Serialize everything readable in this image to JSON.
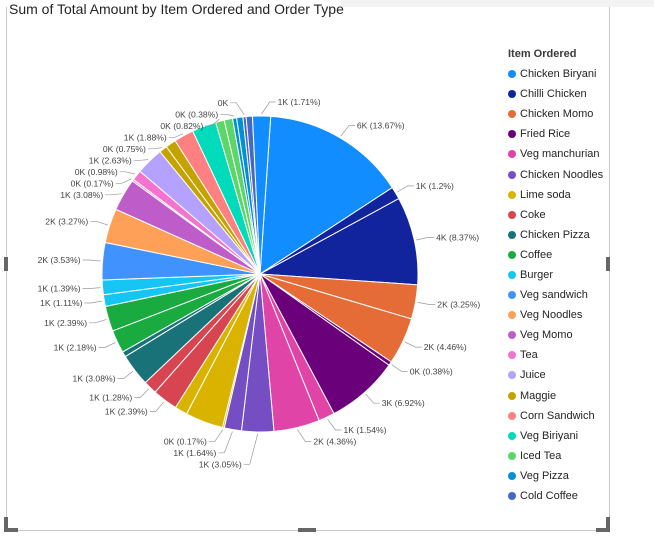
{
  "chart_data": {
    "type": "pie",
    "title": "Sum of Total Amount by Item Ordered and Order Type",
    "legend_title": "Item Ordered",
    "legend_position": "right",
    "legend": [
      {
        "name": "Chicken Biryani",
        "color": "#118DFF"
      },
      {
        "name": "Chilli Chicken",
        "color": "#12239E"
      },
      {
        "name": "Chicken Momo",
        "color": "#E66C37"
      },
      {
        "name": "Fried Rice",
        "color": "#6B007B"
      },
      {
        "name": "Veg manchurian",
        "color": "#E044A7"
      },
      {
        "name": "Chicken Noodles",
        "color": "#744EC2"
      },
      {
        "name": "Lime soda",
        "color": "#D9B300"
      },
      {
        "name": "Coke",
        "color": "#D64550"
      },
      {
        "name": "Chicken Pizza",
        "color": "#197278"
      },
      {
        "name": "Coffee",
        "color": "#1AAB40"
      },
      {
        "name": "Burger",
        "color": "#15C6F4"
      },
      {
        "name": "Veg sandwich",
        "color": "#4092FF"
      },
      {
        "name": "Veg Noodles",
        "color": "#FFA058"
      },
      {
        "name": "Veg Momo",
        "color": "#BE5DC9"
      },
      {
        "name": "Tea",
        "color": "#F472D0"
      },
      {
        "name": "Juice",
        "color": "#B5A1FF"
      },
      {
        "name": "Maggie",
        "color": "#C4A200"
      },
      {
        "name": "Corn Sandwich",
        "color": "#FF8080"
      },
      {
        "name": "Veg Biriyani",
        "color": "#00DBBC"
      },
      {
        "name": "Iced Tea",
        "color": "#5BD667"
      },
      {
        "name": "Veg Pizza",
        "color": "#0091D5"
      },
      {
        "name": "Cold Coffee",
        "color": "#4668C5"
      }
    ],
    "slices": [
      {
        "item": "Chicken Biryani",
        "color": "#118DFF",
        "percent": 13.67,
        "label": "6K (13.67%)"
      },
      {
        "item": "Chilli Chicken",
        "color": "#12239E",
        "percent": 1.2,
        "label": "1K (1.2%)"
      },
      {
        "item": "Chilli Chicken",
        "color": "#12239E",
        "percent": 8.37,
        "label": "4K (8.37%)"
      },
      {
        "item": "Chicken Momo",
        "color": "#E66C37",
        "percent": 3.25,
        "label": "2K (3.25%)"
      },
      {
        "item": "Chicken Momo",
        "color": "#E66C37",
        "percent": 4.46,
        "label": "2K (4.46%)"
      },
      {
        "item": "Fried Rice",
        "color": "#6B007B",
        "percent": 0.38,
        "label": "0K (0.38%)"
      },
      {
        "item": "Fried Rice",
        "color": "#6B007B",
        "percent": 6.92,
        "label": "3K (6.92%)"
      },
      {
        "item": "Veg manchurian",
        "color": "#E044A7",
        "percent": 1.54,
        "label": "1K (1.54%)"
      },
      {
        "item": "Veg manchurian",
        "color": "#E044A7",
        "percent": 4.36,
        "label": "2K (4.36%)"
      },
      {
        "item": "Chicken Noodles",
        "color": "#744EC2",
        "percent": 3.05,
        "label": "1K (3.05%)"
      },
      {
        "item": "Chicken Noodles",
        "color": "#744EC2",
        "percent": 1.64,
        "label": "1K (1.64%)"
      },
      {
        "item": "Lime soda",
        "color": "#D9B300",
        "percent": 0.17,
        "label": "0K (0.17%)"
      },
      {
        "item": "Lime soda",
        "color": "#D9B300",
        "percent": 3.6,
        "label": ""
      },
      {
        "item": "Lime soda",
        "color": "#D9B300",
        "percent": 1.2,
        "label": ""
      },
      {
        "item": "Coke",
        "color": "#D64550",
        "percent": 2.39,
        "label": "1K (2.39%)"
      },
      {
        "item": "Coke",
        "color": "#D64550",
        "percent": 1.28,
        "label": "1K (1.28%)"
      },
      {
        "item": "Chicken Pizza",
        "color": "#197278",
        "percent": 3.08,
        "label": "1K (3.08%)"
      },
      {
        "item": "Chicken Pizza",
        "color": "#197278",
        "percent": 0.5,
        "label": ""
      },
      {
        "item": "Coffee",
        "color": "#1AAB40",
        "percent": 2.18,
        "label": "1K (2.18%)"
      },
      {
        "item": "Coffee",
        "color": "#1AAB40",
        "percent": 2.39,
        "label": "1K (2.39%)"
      },
      {
        "item": "Burger",
        "color": "#15C6F4",
        "percent": 1.11,
        "label": "1K (1.11%)"
      },
      {
        "item": "Burger",
        "color": "#15C6F4",
        "percent": 1.39,
        "label": "1K (1.39%)"
      },
      {
        "item": "Veg sandwich",
        "color": "#4092FF",
        "percent": 3.53,
        "label": "2K (3.53%)"
      },
      {
        "item": "Veg Noodles",
        "color": "#FFA058",
        "percent": 3.27,
        "label": "2K (3.27%)"
      },
      {
        "item": "Veg Momo",
        "color": "#BE5DC9",
        "percent": 3.08,
        "label": "1K (3.08%)"
      },
      {
        "item": "Tea",
        "color": "#F472D0",
        "percent": 0.17,
        "label": "0K (0.17%)"
      },
      {
        "item": "Tea",
        "color": "#F472D0",
        "percent": 0.98,
        "label": "0K (0.98%)"
      },
      {
        "item": "Juice",
        "color": "#B5A1FF",
        "percent": 2.63,
        "label": "1K (2.63%)"
      },
      {
        "item": "Maggie",
        "color": "#C4A200",
        "percent": 0.75,
        "label": "0K (0.75%)"
      },
      {
        "item": "Maggie",
        "color": "#C4A200",
        "percent": 1.0,
        "label": ""
      },
      {
        "item": "Corn Sandwich",
        "color": "#FF8080",
        "percent": 1.88,
        "label": "1K (1.88%)"
      },
      {
        "item": "Veg Biriyani",
        "color": "#00DBBC",
        "percent": 2.3,
        "label": ""
      },
      {
        "item": "Iced Tea",
        "color": "#5BD667",
        "percent": 0.82,
        "label": "0K (0.82%)"
      },
      {
        "item": "Iced Tea",
        "color": "#5BD667",
        "percent": 0.8,
        "label": ""
      },
      {
        "item": "Veg Pizza",
        "color": "#0091D5",
        "percent": 0.38,
        "label": "0K (0.38%)"
      },
      {
        "item": "Veg Pizza",
        "color": "#0091D5",
        "percent": 0.6,
        "label": ""
      },
      {
        "item": "Cold Coffee",
        "color": "#4668C5",
        "percent": 0.3,
        "label": "0K"
      },
      {
        "item": "Cold Coffee",
        "color": "#4668C5",
        "percent": 0.6,
        "label": ""
      },
      {
        "item": "Chicken Biryani",
        "color": "#118DFF",
        "percent": 1.71,
        "label": "1K (1.71%)"
      }
    ]
  }
}
